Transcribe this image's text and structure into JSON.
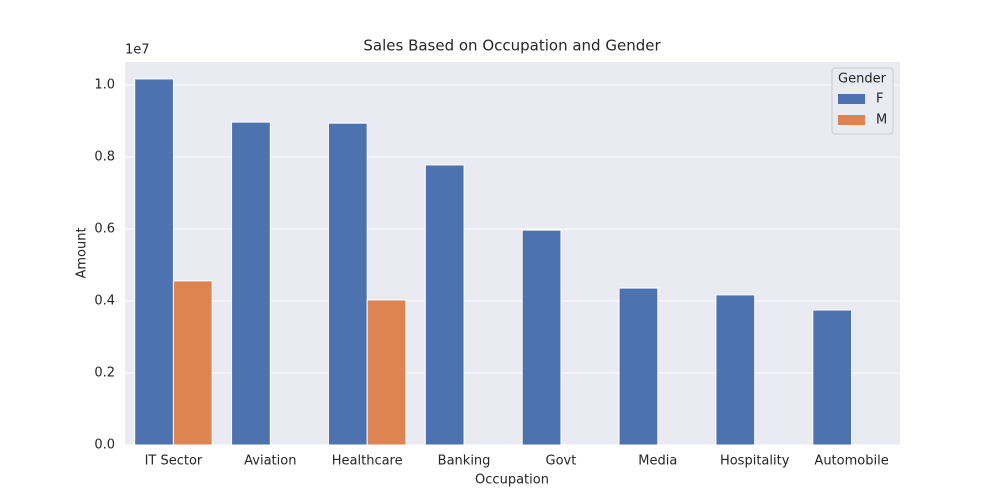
{
  "chart_data": {
    "type": "bar",
    "title": "Sales Based on Occupation and Gender",
    "x_label": "Occupation",
    "y_label": "Amount",
    "y_offset_label": "1e7",
    "categories": [
      "IT Sector",
      "Aviation",
      "Healthcare",
      "Banking",
      "Govt",
      "Media",
      "Hospitality",
      "Automobile"
    ],
    "series": [
      {
        "name": "F",
        "color": "#4c72b0",
        "values": [
          1.017,
          0.897,
          0.894,
          0.778,
          0.597,
          0.436,
          0.417,
          0.375
        ]
      },
      {
        "name": "M",
        "color": "#dd8452",
        "values": [
          0.456,
          null,
          0.403,
          null,
          null,
          null,
          null,
          null
        ]
      }
    ],
    "legend_title": "Gender",
    "legend_position": "upper-right",
    "ylim": [
      0,
      1.064
    ],
    "yticks": [
      {
        "value": 0,
        "label": "0.0"
      },
      0.2,
      0.4,
      0.6,
      0.8,
      {
        "value": 1,
        "label": "1.0"
      }
    ],
    "grid": true
  }
}
